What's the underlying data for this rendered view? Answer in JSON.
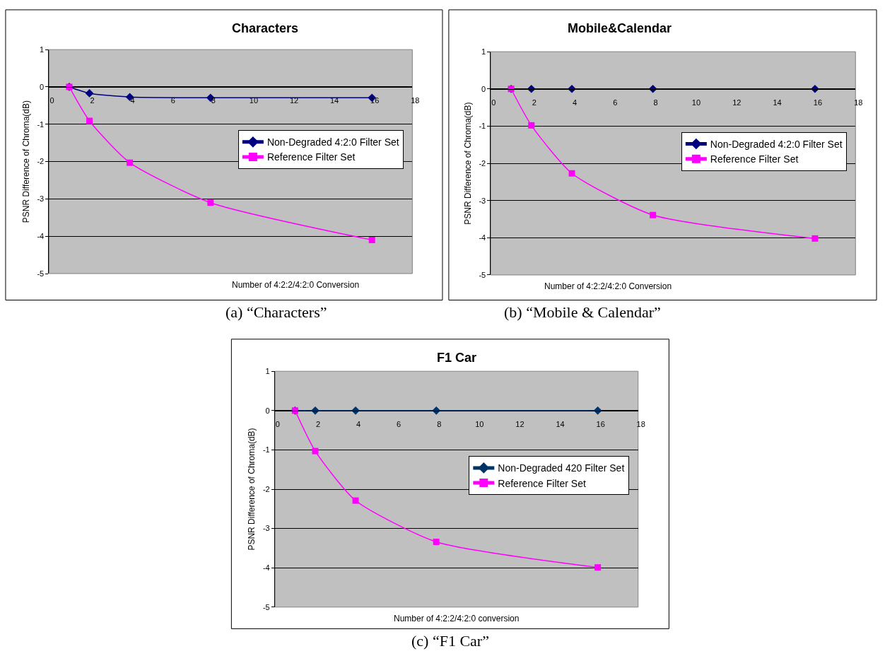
{
  "chart_data": [
    {
      "type": "line",
      "title": "Characters",
      "xlabel": "Number of 4:2:2/4:2:0 Conversion",
      "ylabel": "PSNR Difference of Chroma(dB)",
      "annotations": [
        "(a) “Characters”"
      ],
      "xlim": [
        0,
        18
      ],
      "xticks": [
        0,
        2,
        4,
        6,
        8,
        10,
        12,
        14,
        16,
        18
      ],
      "ylim": [
        -5,
        1
      ],
      "yticks": [
        -5,
        -4,
        -3,
        -2,
        -1,
        0,
        1
      ],
      "grid": "y",
      "legend": "right",
      "series": [
        {
          "name": "Non-Degraded 4:2:0 Filter Set",
          "color": "#000080",
          "marker": "diamond",
          "x": [
            1,
            2,
            4,
            8,
            16
          ],
          "values": [
            0,
            -0.17,
            -0.27,
            -0.29,
            -0.29
          ]
        },
        {
          "name": "Reference Filter Set",
          "color": "#ff00ff",
          "marker": "square",
          "x": [
            1,
            2,
            4,
            8,
            16
          ],
          "values": [
            0,
            -0.91,
            -2.03,
            -3.1,
            -4.1
          ]
        }
      ]
    },
    {
      "type": "line",
      "title": "Mobile&Calendar",
      "xlabel": "Number of 4:2:2/4:2:0 Conversion",
      "ylabel": "PSNR Difference of Chroma(dB)",
      "annotations": [
        "(b) “Mobile & Calendar”"
      ],
      "xlim": [
        0,
        18
      ],
      "xticks": [
        0,
        2,
        4,
        6,
        8,
        10,
        12,
        14,
        16,
        18
      ],
      "ylim": [
        -5,
        1
      ],
      "yticks": [
        -5,
        -4,
        -3,
        -2,
        -1,
        0,
        1
      ],
      "grid": "y",
      "legend": "right",
      "series": [
        {
          "name": "Non-Degraded 4:2:0 Filter Set",
          "color": "#000080",
          "marker": "diamond",
          "x": [
            1,
            2,
            4,
            8,
            16
          ],
          "values": [
            0,
            0,
            0,
            0,
            0
          ]
        },
        {
          "name": "Reference Filter Set",
          "color": "#ff00ff",
          "marker": "square",
          "x": [
            1,
            2,
            4,
            8,
            16
          ],
          "values": [
            0,
            -0.98,
            -2.27,
            -3.39,
            -4.02
          ]
        }
      ]
    },
    {
      "type": "line",
      "title": "F1 Car",
      "xlabel": "Number of 4:2:2/4:2:0 conversion",
      "ylabel": "PSNR Difference of Chroma(dB)",
      "annotations": [
        "(c) “F1 Car”"
      ],
      "xlim": [
        0,
        18
      ],
      "xticks": [
        0,
        2,
        4,
        6,
        8,
        10,
        12,
        14,
        16,
        18
      ],
      "ylim": [
        -5,
        1
      ],
      "yticks": [
        -5,
        -4,
        -3,
        -2,
        -1,
        0,
        1
      ],
      "grid": "y",
      "legend": "right",
      "series": [
        {
          "name": "Non-Degraded 420 Filter Set",
          "color": "#003366",
          "marker": "diamond",
          "x": [
            1,
            2,
            4,
            8,
            16
          ],
          "values": [
            0,
            0,
            0,
            0,
            0
          ]
        },
        {
          "name": "Reference Filter Set",
          "color": "#ff00ff",
          "marker": "square",
          "x": [
            1,
            2,
            4,
            8,
            16
          ],
          "values": [
            0,
            -1.03,
            -2.29,
            -3.34,
            -3.99
          ]
        }
      ]
    }
  ]
}
